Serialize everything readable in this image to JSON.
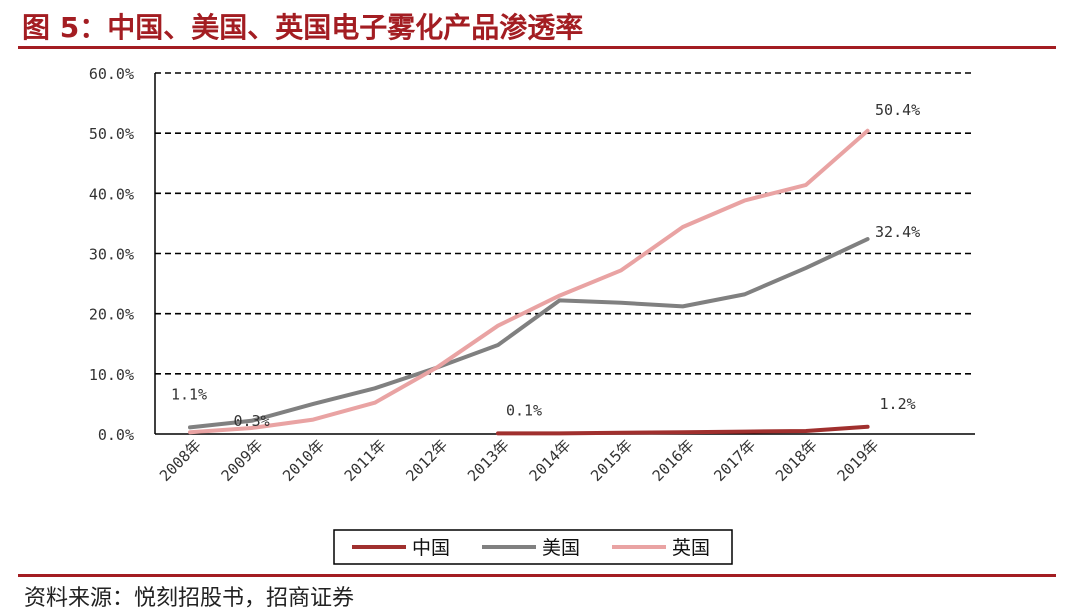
{
  "figure": {
    "title": "图 5：中国、美国、英国电子雾化产品渗透率",
    "source": "资料来源：悦刻招股书，招商证券"
  },
  "chart_data": {
    "type": "line",
    "title": "图 5：中国、美国、英国电子雾化产品渗透率",
    "xlabel": "",
    "ylabel": "",
    "categories": [
      "2008年",
      "2009年",
      "2010年",
      "2011年",
      "2012年",
      "2013年",
      "2014年",
      "2015年",
      "2016年",
      "2017年",
      "2018年",
      "2019年"
    ],
    "ylim": [
      0,
      60
    ],
    "yticks": [
      "0.0%",
      "10.0%",
      "20.0%",
      "30.0%",
      "40.0%",
      "50.0%",
      "60.0%"
    ],
    "grid": true,
    "legend_position": "bottom",
    "series": [
      {
        "name": "中国",
        "color": "#a0302e",
        "values": [
          null,
          null,
          null,
          null,
          null,
          0.1,
          0.1,
          0.2,
          0.3,
          0.4,
          0.5,
          1.2
        ]
      },
      {
        "name": "美国",
        "color": "#808080",
        "values": [
          1.1,
          2.2,
          5.0,
          7.6,
          11.0,
          14.8,
          22.2,
          21.8,
          21.2,
          23.2,
          27.6,
          32.4
        ]
      },
      {
        "name": "英国",
        "color": "#e9a3a3",
        "values": [
          0.3,
          1.0,
          2.4,
          5.2,
          11.0,
          18.0,
          23.0,
          27.2,
          34.4,
          38.8,
          41.4,
          50.4
        ]
      }
    ],
    "annotations": [
      {
        "text": "1.1%",
        "series": "美国",
        "category": "2008年"
      },
      {
        "text": "0.3%",
        "series": "英国",
        "category": "2009年"
      },
      {
        "text": "0.1%",
        "series": "中国",
        "category": "2013年"
      },
      {
        "text": "1.2%",
        "series": "中国",
        "category": "2019年"
      },
      {
        "text": "32.4%",
        "series": "美国",
        "category": "2019年"
      },
      {
        "text": "50.4%",
        "series": "英国",
        "category": "2019年"
      }
    ]
  }
}
